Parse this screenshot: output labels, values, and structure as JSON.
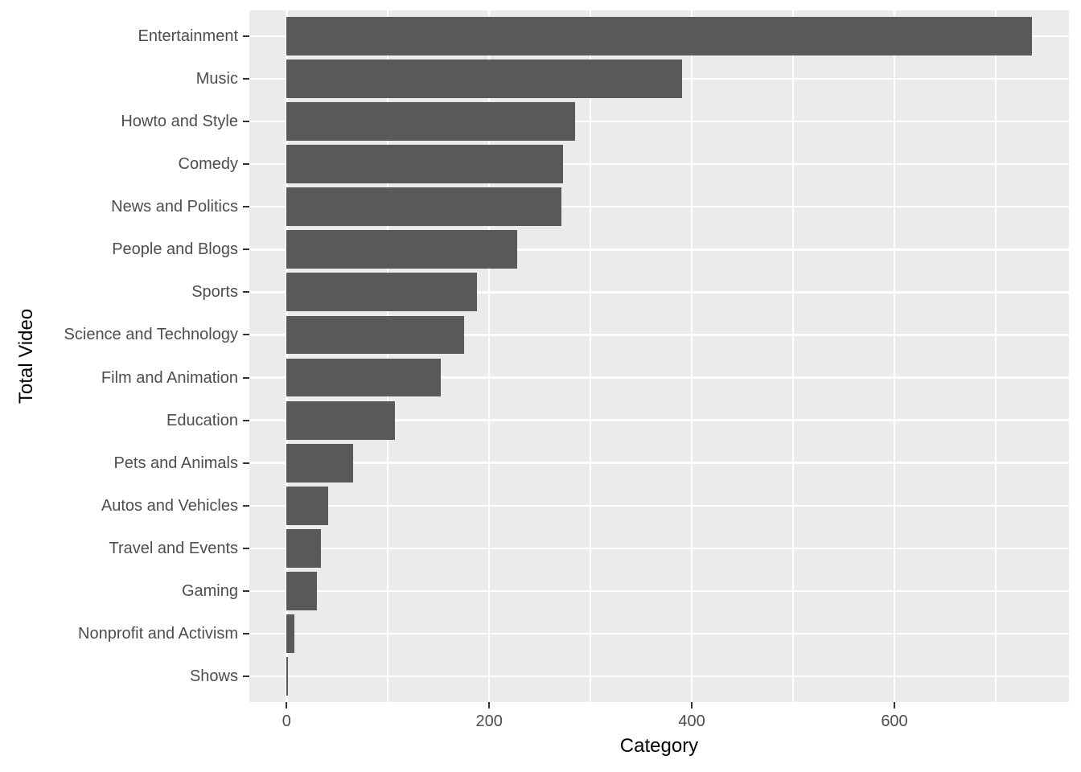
{
  "chart_data": {
    "type": "bar",
    "orientation": "horizontal",
    "title": "",
    "xlabel": "Category",
    "ylabel": "Total Video",
    "categories": [
      "Entertainment",
      "Music",
      "Howto and Style",
      "Comedy",
      "News and Politics",
      "People and Blogs",
      "Sports",
      "Science and Technology",
      "Film and Animation",
      "Education",
      "Pets and Animals",
      "Autos and Vehicles",
      "Travel and Events",
      "Gaming",
      "Nonprofit and Activism",
      "Shows"
    ],
    "values": [
      736,
      390,
      285,
      273,
      271,
      228,
      188,
      175,
      152,
      107,
      66,
      41,
      34,
      30,
      8,
      1
    ],
    "x_ticks": [
      0,
      200,
      400,
      600
    ],
    "x_tick_labels": [
      "0",
      "200",
      "400",
      "600"
    ],
    "x_minor_ticks": [
      100,
      300,
      500,
      700
    ],
    "xlim": [
      -36.8,
      772.3
    ],
    "grid": true,
    "legend": false,
    "style": {
      "bar_fill": "#595959",
      "panel_background": "#EBEBEB",
      "gridline_color": "#FFFFFF",
      "tick_label_color": "#4D4D4D",
      "axis_title_color": "#000000",
      "tick_mark_color": "#333333",
      "page_background": "#FFFFFF"
    }
  }
}
